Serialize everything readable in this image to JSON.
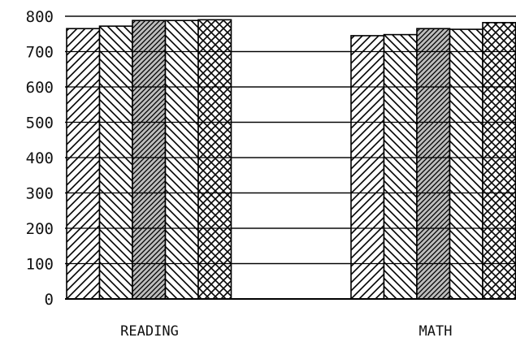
{
  "chart_data": {
    "type": "bar",
    "title": "",
    "xlabel": "",
    "ylabel": "",
    "ylim": [
      0,
      800
    ],
    "yticks": [
      0,
      100,
      200,
      300,
      400,
      500,
      600,
      700,
      800
    ],
    "grid": true,
    "legend": "none",
    "categories": [
      "READING",
      "MATH"
    ],
    "series": [
      {
        "pattern": "diagonal-forward",
        "values": [
          765,
          745
        ]
      },
      {
        "pattern": "diagonal-backward",
        "values": [
          772,
          748
        ]
      },
      {
        "pattern": "dense-diagonal-shaded",
        "values": [
          788,
          765
        ]
      },
      {
        "pattern": "diagonal-backward",
        "values": [
          788,
          763
        ]
      },
      {
        "pattern": "crosshatch",
        "values": [
          790,
          782
        ]
      }
    ]
  }
}
